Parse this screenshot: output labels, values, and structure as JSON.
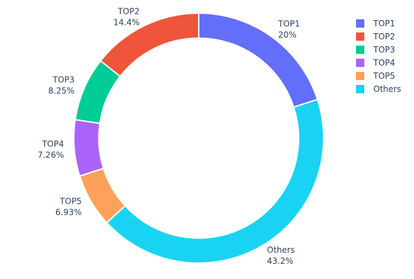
{
  "chart_data": {
    "type": "pie",
    "hole": 0.8,
    "direction": "clockwise starting at top",
    "labels": [
      "TOP1",
      "TOP2",
      "TOP3",
      "TOP4",
      "TOP5",
      "Others"
    ],
    "values": [
      20,
      14.4,
      8.25,
      7.26,
      6.93,
      43.2
    ],
    "value_labels": [
      "20%",
      "14.4%",
      "8.25%",
      "7.26%",
      "6.93%",
      "43.2%"
    ],
    "colors": [
      "#636efa",
      "#ef553b",
      "#00cc96",
      "#ab63fa",
      "#ffa15a",
      "#19d3f3"
    ],
    "slice_order_clockwise": [
      "TOP1",
      "Others",
      "TOP5",
      "TOP4",
      "TOP3",
      "TOP2"
    ],
    "legend": {
      "position": "top-right",
      "entries": [
        "TOP1",
        "TOP2",
        "TOP3",
        "TOP4",
        "TOP5",
        "Others"
      ]
    }
  }
}
